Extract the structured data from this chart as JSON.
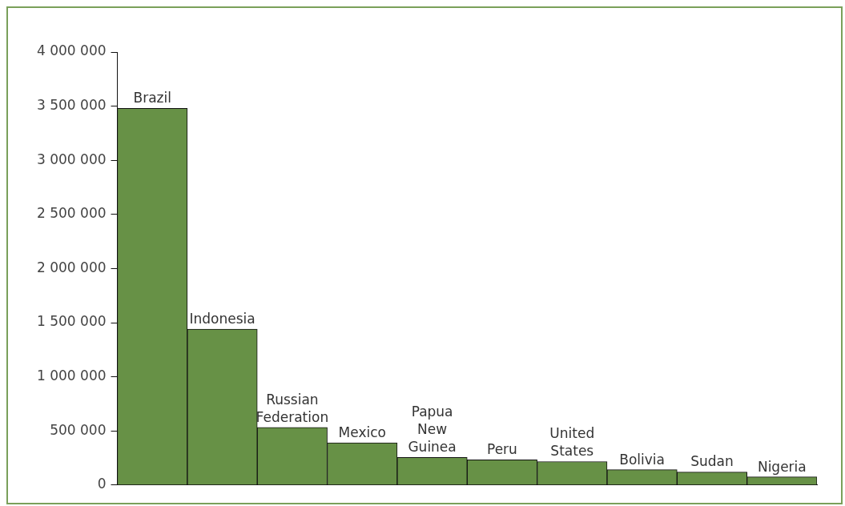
{
  "chart_data": {
    "type": "bar",
    "categories": [
      "Brazil",
      "Indonesia",
      "Russian Federation",
      "Mexico",
      "Papua New Guinea",
      "Peru",
      "United States",
      "Bolivia",
      "Sudan",
      "Nigeria"
    ],
    "values": [
      3480000,
      1440000,
      532000,
      390000,
      255000,
      232000,
      217000,
      142000,
      120000,
      75000
    ],
    "color": "#679146",
    "ylim": [
      0,
      4000000
    ],
    "yticks": [
      {
        "value": 0,
        "label": "0"
      },
      {
        "value": 500000,
        "label": "500 000"
      },
      {
        "value": 1000000,
        "label": "1 000 000"
      },
      {
        "value": 1500000,
        "label": "1 500 000"
      },
      {
        "value": 2000000,
        "label": "2 000 000"
      },
      {
        "value": 2500000,
        "label": "2 500 000"
      },
      {
        "value": 3000000,
        "label": "3 000 000"
      },
      {
        "value": 3500000,
        "label": "3 500 000"
      },
      {
        "value": 4000000,
        "label": "4 000 000"
      }
    ],
    "grid": false,
    "legend": false
  }
}
